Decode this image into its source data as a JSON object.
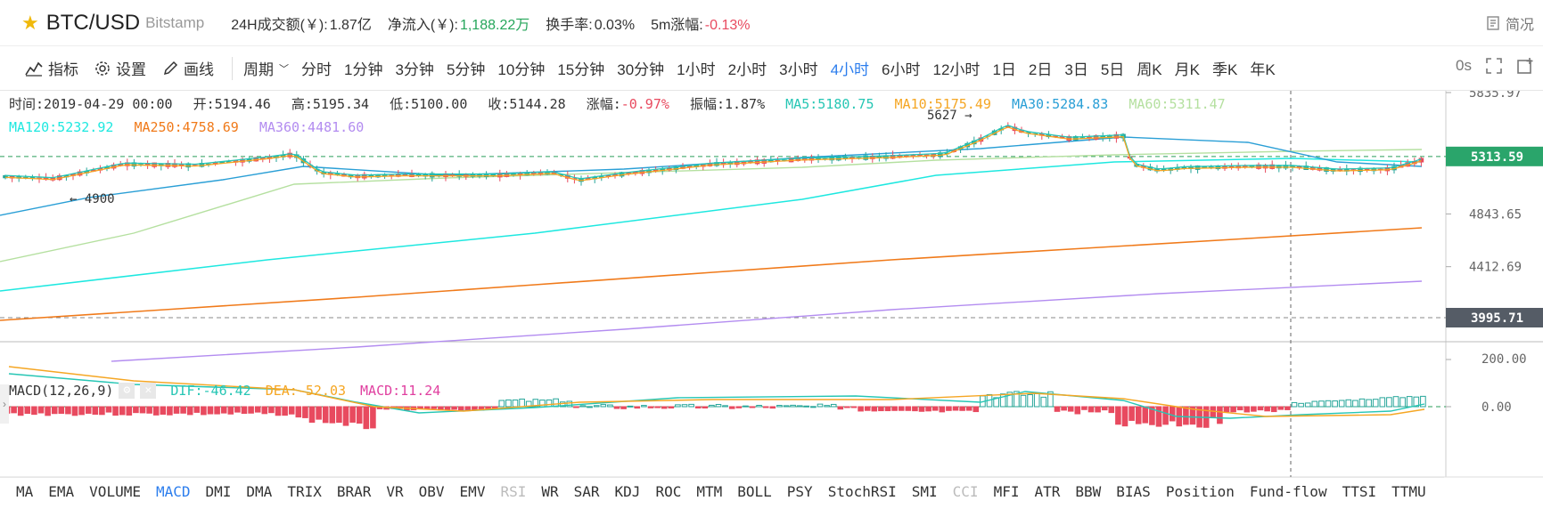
{
  "header": {
    "symbol": "BTC/USD",
    "exchange": "Bitstamp",
    "stats": [
      {
        "label": "24H成交额(￥):",
        "value": "1.87亿",
        "color": "#333333"
      },
      {
        "label": "净流入(￥):",
        "value": "1,188.22万",
        "color": "#26a65b"
      },
      {
        "label": "换手率:",
        "value": "0.03%",
        "color": "#333333"
      },
      {
        "label": "5m涨幅:",
        "value": "-0.13%",
        "color": "#e84a5f"
      }
    ],
    "lang_label": "简况"
  },
  "toolbar": {
    "indicators_label": "指标",
    "settings_label": "设置",
    "draw_label": "画线",
    "period_label": "周期",
    "periods": [
      "分时",
      "1分钟",
      "3分钟",
      "5分钟",
      "10分钟",
      "15分钟",
      "30分钟",
      "1小时",
      "2小时",
      "3小时",
      "4小时",
      "6小时",
      "12小时",
      "1日",
      "2日",
      "3日",
      "5日",
      "周K",
      "月K",
      "季K",
      "年K"
    ],
    "active_period": "4小时",
    "countdown": "0s"
  },
  "info": {
    "time": "时间:2019-04-29 00:00",
    "open": "开:5194.46",
    "high": "高:5195.34",
    "low": "低:5100.00",
    "close": "收:5144.28",
    "change_label": "涨幅:",
    "change_value": "-0.97%",
    "amplitude": "振幅:1.87%",
    "ma": [
      {
        "text": "MA5:5180.75",
        "color": "#26c6b4"
      },
      {
        "text": "MA10:5175.49",
        "color": "#f5a623"
      },
      {
        "text": "MA30:5284.83",
        "color": "#2a9fd6"
      },
      {
        "text": "MA60:5311.47",
        "color": "#b5e0a0"
      },
      {
        "text": "MA120:5232.92",
        "color": "#1ee8e0"
      },
      {
        "text": "MA250:4758.69",
        "color": "#f07a1a"
      },
      {
        "text": "MA360:4481.60",
        "color": "#b38cf0"
      }
    ]
  },
  "macd": {
    "title": "MACD(12,26,9)",
    "dif": "DIF:-46.42",
    "dea": "DEA:-52.03",
    "macd": "MACD:11.24"
  },
  "price_axis": {
    "ticks": [
      "5835.97",
      "5313.59",
      "4843.65",
      "4412.69",
      "3995.71"
    ],
    "macd_ticks": [
      "200.00",
      "0.00"
    ],
    "current_price": "5313.59",
    "low_marker": "3995.71"
  },
  "annotations": {
    "high_mark": "5627",
    "low_mark": "4900"
  },
  "indicators": {
    "items": [
      "MA",
      "EMA",
      "VOLUME",
      "MACD",
      "DMI",
      "DMA",
      "TRIX",
      "BRAR",
      "VR",
      "OBV",
      "EMV",
      "RSI",
      "WR",
      "SAR",
      "KDJ",
      "ROC",
      "MTM",
      "BOLL",
      "PSY",
      "StochRSI",
      "SMI",
      "CCI",
      "MFI",
      "ATR",
      "BBW",
      "BIAS",
      "Position",
      "Fund-flow",
      "TTSI",
      "TTMU"
    ],
    "active": "MACD",
    "dim": [
      "RSI",
      "CCI"
    ]
  },
  "colors": {
    "up": "#26a69a",
    "down": "#e84a5f",
    "accent": "#2b7ded"
  }
}
